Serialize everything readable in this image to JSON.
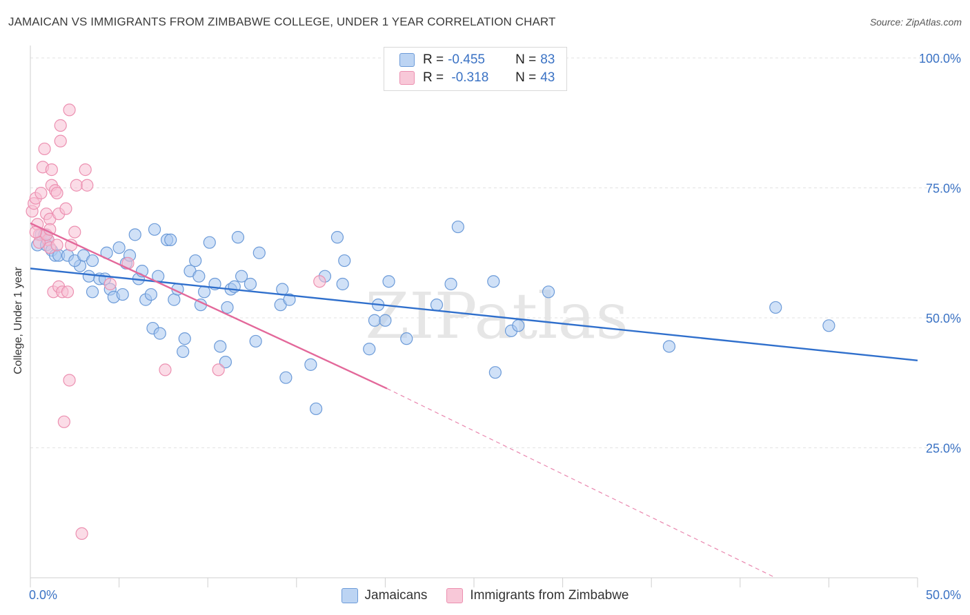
{
  "title": "JAMAICAN VS IMMIGRANTS FROM ZIMBABWE COLLEGE, UNDER 1 YEAR CORRELATION CHART",
  "source": "Source: ZipAtlas.com",
  "watermark": "ZIPatlas",
  "legend": {
    "rows": [
      {
        "r_label": "R =",
        "r_value": "-0.455",
        "n_label": "N =",
        "n_value": "83"
      },
      {
        "r_label": "R =",
        "r_value": " -0.318",
        "n_label": "N =",
        "n_value": "43"
      }
    ]
  },
  "chart_data": {
    "type": "scatter",
    "xlabel": "",
    "ylabel": "College, Under 1 year",
    "xlim": [
      0,
      50
    ],
    "ylim": [
      0,
      100
    ],
    "x_tick_labels": [
      "0.0%",
      "50.0%"
    ],
    "y_tick_labels": [
      "100.0%",
      "75.0%",
      "50.0%",
      "25.0%"
    ],
    "y_ticks": [
      100,
      75,
      50,
      25
    ],
    "grid": "horizontal dashed",
    "legend_placement": "bottom-center",
    "series": [
      {
        "name": "Jamaicans",
        "color": "#a9c8f0",
        "stroke": "#6b9ad8",
        "trend_color": "#2f6fcc",
        "trend": {
          "x0": 0,
          "y0": 59.5,
          "x1": 50,
          "y1": 41.8
        },
        "points": [
          [
            0.4,
            64
          ],
          [
            0.6,
            66
          ],
          [
            0.8,
            66
          ],
          [
            1.0,
            65
          ],
          [
            0.9,
            64
          ],
          [
            1.2,
            63
          ],
          [
            1.4,
            62
          ],
          [
            1.6,
            62
          ],
          [
            2.1,
            62
          ],
          [
            2.8,
            60
          ],
          [
            2.5,
            61
          ],
          [
            3.0,
            62
          ],
          [
            3.3,
            58
          ],
          [
            3.5,
            55
          ],
          [
            3.5,
            61
          ],
          [
            3.9,
            57.5
          ],
          [
            4.2,
            57.5
          ],
          [
            4.3,
            62.5
          ],
          [
            4.5,
            55.5
          ],
          [
            4.7,
            54
          ],
          [
            5.0,
            63.5
          ],
          [
            5.2,
            54.5
          ],
          [
            5.4,
            60.5
          ],
          [
            5.6,
            62
          ],
          [
            5.9,
            66
          ],
          [
            6.1,
            57.5
          ],
          [
            6.3,
            59
          ],
          [
            6.5,
            53.5
          ],
          [
            6.8,
            54.5
          ],
          [
            6.9,
            48
          ],
          [
            7.2,
            58
          ],
          [
            7.3,
            47
          ],
          [
            7.7,
            65
          ],
          [
            7.9,
            65
          ],
          [
            8.1,
            53.5
          ],
          [
            8.3,
            55.5
          ],
          [
            8.6,
            43.5
          ],
          [
            8.7,
            46
          ],
          [
            9.0,
            59
          ],
          [
            9.3,
            61
          ],
          [
            9.6,
            52.5
          ],
          [
            9.8,
            55
          ],
          [
            10.1,
            64.5
          ],
          [
            10.4,
            56.5
          ],
          [
            10.7,
            44.5
          ],
          [
            11.0,
            41.5
          ],
          [
            11.1,
            52
          ],
          [
            11.3,
            55.5
          ],
          [
            11.5,
            56
          ],
          [
            11.7,
            65.5
          ],
          [
            11.9,
            58
          ],
          [
            12.4,
            56.5
          ],
          [
            12.7,
            45.5
          ],
          [
            12.9,
            62.5
          ],
          [
            14.1,
            52.5
          ],
          [
            14.2,
            55.5
          ],
          [
            14.4,
            38.5
          ],
          [
            14.6,
            53.5
          ],
          [
            15.8,
            41
          ],
          [
            16.1,
            32.5
          ],
          [
            16.6,
            58
          ],
          [
            17.3,
            65.5
          ],
          [
            17.6,
            56.5
          ],
          [
            17.7,
            61
          ],
          [
            19.1,
            44
          ],
          [
            19.4,
            49.5
          ],
          [
            19.6,
            52.5
          ],
          [
            20.0,
            49.5
          ],
          [
            20.2,
            57
          ],
          [
            21.2,
            46
          ],
          [
            22.9,
            52.5
          ],
          [
            23.7,
            56.5
          ],
          [
            24.1,
            67.5
          ],
          [
            26.1,
            57
          ],
          [
            26.2,
            39.5
          ],
          [
            27.1,
            47.5
          ],
          [
            27.5,
            48.5
          ],
          [
            29.2,
            55
          ],
          [
            36.0,
            44.5
          ],
          [
            42.0,
            52
          ],
          [
            45.0,
            48.5
          ],
          [
            7.0,
            67
          ],
          [
            9.5,
            58
          ]
        ]
      },
      {
        "name": "Immigrants from Zimbabwe",
        "color": "#f8c0d4",
        "stroke": "#ec8fb0",
        "trend_color": "#e3689a",
        "trend": {
          "x0": 0,
          "y0": 68.2,
          "x1": 20.1,
          "y1": 36.4
        },
        "trend_dashed": {
          "x0": 20.1,
          "y0": 36.4,
          "x1": 42.0,
          "y1": 0
        },
        "points": [
          [
            0.1,
            70.5
          ],
          [
            0.2,
            72
          ],
          [
            0.3,
            73
          ],
          [
            0.4,
            68
          ],
          [
            0.5,
            66
          ],
          [
            0.6,
            74
          ],
          [
            0.7,
            79
          ],
          [
            0.8,
            82.5
          ],
          [
            0.9,
            70
          ],
          [
            1.0,
            65
          ],
          [
            1.1,
            63.5
          ],
          [
            1.1,
            69
          ],
          [
            1.2,
            78.5
          ],
          [
            1.2,
            75.5
          ],
          [
            1.3,
            55
          ],
          [
            1.4,
            74.5
          ],
          [
            1.5,
            64
          ],
          [
            1.5,
            74
          ],
          [
            1.6,
            56
          ],
          [
            1.6,
            70
          ],
          [
            1.7,
            84
          ],
          [
            1.7,
            87
          ],
          [
            1.8,
            55
          ],
          [
            1.9,
            30
          ],
          [
            2.0,
            71
          ],
          [
            2.1,
            55
          ],
          [
            2.2,
            38
          ],
          [
            2.2,
            90
          ],
          [
            2.3,
            64
          ],
          [
            2.5,
            66.5
          ],
          [
            2.6,
            75.5
          ],
          [
            2.9,
            8.5
          ],
          [
            3.1,
            78.5
          ],
          [
            3.2,
            75.5
          ],
          [
            4.5,
            56.5
          ],
          [
            5.5,
            60.5
          ],
          [
            7.6,
            40
          ],
          [
            10.6,
            40
          ],
          [
            16.3,
            57
          ],
          [
            0.5,
            64.5
          ],
          [
            0.9,
            66
          ],
          [
            1.1,
            67
          ],
          [
            0.3,
            66.5
          ]
        ]
      }
    ]
  }
}
